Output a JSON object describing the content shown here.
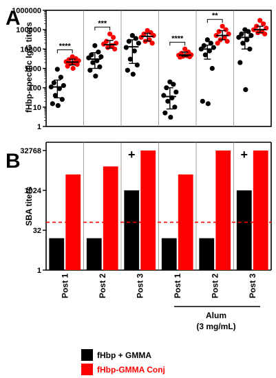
{
  "colors": {
    "fhbp_gmma": "#000000",
    "fhbp_gmma_conj": "#ff0000",
    "threshold": "#ff0000"
  },
  "panels": {
    "a": "A",
    "b": "B"
  },
  "groups": [
    "Post 1",
    "Post 2",
    "Post 3",
    "Post 1",
    "Post 2",
    "Post 3"
  ],
  "group_bracket": {
    "line1": "Alum",
    "line2": "(3 mg/mL)"
  },
  "legend": [
    {
      "label": "fHbp + GMMA",
      "color": "#000000"
    },
    {
      "label": "fHbp-GMMA Conj",
      "color": "#ff0000"
    }
  ],
  "chart_data": [
    {
      "type": "scatter",
      "panel": "A",
      "ylabel": "fHbp-specific IgG titers",
      "yscale": "log",
      "ylim": [
        1,
        1000000
      ],
      "yticks": [
        "1",
        "10",
        "100",
        "1000",
        "10000",
        "100000",
        "1000000"
      ],
      "series": [
        {
          "name": "fHbp + GMMA",
          "color": "#000000"
        },
        {
          "name": "fHbp-GMMA Conj",
          "color": "#ff0000"
        }
      ],
      "groups": [
        {
          "label": "Post 1",
          "black": {
            "points": [
              900,
              350,
              180,
              130,
              110,
              90,
              40,
              25,
              15,
              12
            ],
            "median": 110,
            "q1": 30,
            "q3": 250
          },
          "red": {
            "points": [
              4000,
              3200,
              2800,
              2500,
              2200,
              2000,
              1800,
              1600,
              1300,
              1000
            ],
            "median": 2100,
            "q1": 1500,
            "q3": 3000
          },
          "significance": "****"
        },
        {
          "label": "Post 2",
          "black": {
            "points": [
              15000,
              7000,
              5000,
              4000,
              3500,
              2500,
              2000,
              1200,
              800,
              400
            ],
            "median": 3000,
            "q1": 1000,
            "q3": 6500
          },
          "red": {
            "points": [
              60000,
              40000,
              25000,
              20000,
              18000,
              15000,
              12000,
              10000
            ],
            "median": 17000,
            "q1": 11000,
            "q3": 28000
          },
          "significance": "***"
        },
        {
          "label": "Post 3",
          "black": {
            "points": [
              50000,
              35000,
              25000,
              20000,
              12000,
              8000,
              3000,
              1500,
              800,
              500
            ],
            "median": 13000,
            "q1": 1800,
            "q3": 30000
          },
          "red": {
            "points": [
              90000,
              70000,
              60000,
              50000,
              40000,
              30000,
              25000,
              20000
            ],
            "median": 45000,
            "q1": 26000,
            "q3": 65000
          },
          "significance": ""
        },
        {
          "label": "Post 1",
          "black": {
            "points": [
              200,
              150,
              100,
              60,
              40,
              30,
              20,
              10,
              5,
              3
            ],
            "median": 35,
            "q1": 8,
            "q3": 100
          },
          "red": {
            "points": [
              10000,
              7000,
              6000,
              5000,
              4800,
              4500,
              4200,
              4000,
              3800
            ],
            "median": 4800,
            "q1": 4200,
            "q3": 7000
          },
          "significance": "****"
        },
        {
          "label": "Post 2",
          "black": {
            "points": [
              30000,
              20000,
              15000,
              12000,
              10000,
              8000,
              5000,
              1000,
              20,
              15
            ],
            "median": 10000,
            "q1": 3000,
            "q3": 16000
          },
          "red": {
            "points": [
              150000,
              100000,
              80000,
              60000,
              50000,
              40000,
              30000,
              25000,
              20000
            ],
            "median": 50000,
            "q1": 30000,
            "q3": 90000
          },
          "significance": "**"
        },
        {
          "label": "Post 3",
          "black": {
            "points": [
              100000,
              80000,
              60000,
              50000,
              40000,
              30000,
              20000,
              10000,
              2000,
              80
            ],
            "median": 40000,
            "q1": 10000,
            "q3": 70000
          },
          "red": {
            "points": [
              300000,
              200000,
              150000,
              120000,
              100000,
              80000,
              70000,
              60000
            ],
            "median": 100000,
            "q1": 70000,
            "q3": 150000
          },
          "significance": ""
        }
      ]
    },
    {
      "type": "bar",
      "panel": "B",
      "ylabel": "SBA titers",
      "yscale": "log2",
      "ylim": [
        1,
        32768
      ],
      "yticks": [
        "1",
        "32",
        "1024",
        "32768"
      ],
      "threshold": 64,
      "categories": [
        "Post 1",
        "Post 2",
        "Post 3",
        "Post 1",
        "Post 2",
        "Post 3"
      ],
      "series": [
        {
          "name": "fHbp + GMMA",
          "color": "#000000",
          "values": [
            16,
            16,
            1024,
            16,
            16,
            1024
          ]
        },
        {
          "name": "fHbp-GMMA Conj",
          "color": "#ff0000",
          "values": [
            4096,
            8192,
            32768,
            4096,
            32768,
            32768
          ]
        }
      ],
      "annotations": [
        {
          "group": 2,
          "text": "+"
        },
        {
          "group": 5,
          "text": "+"
        }
      ]
    }
  ]
}
